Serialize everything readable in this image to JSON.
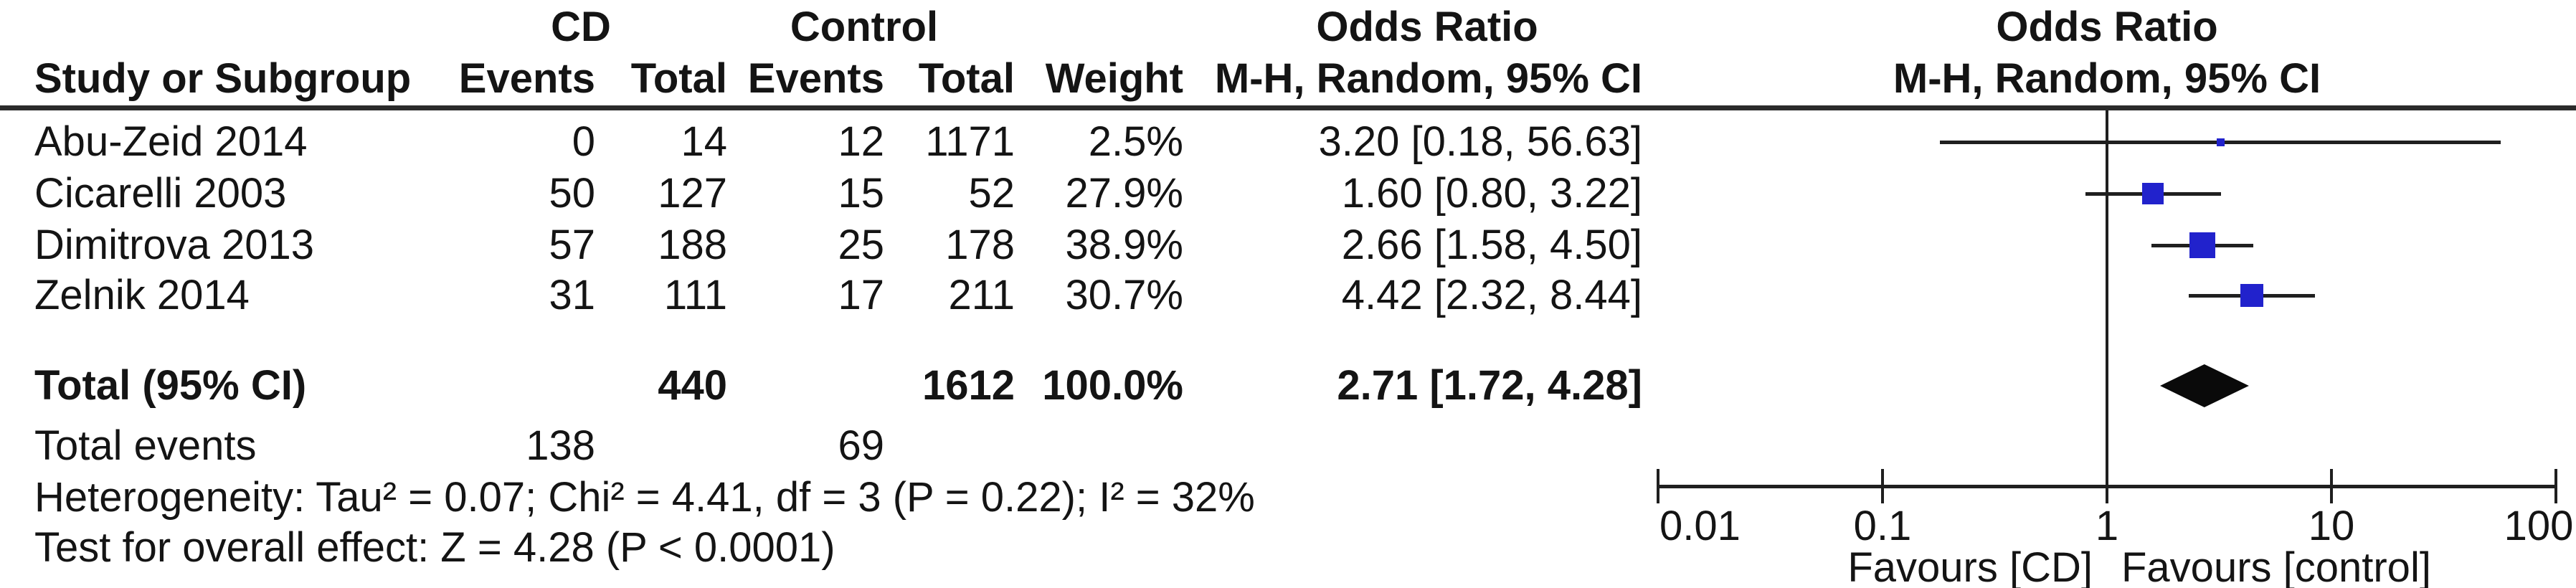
{
  "header": {
    "group_cd": "CD",
    "group_control": "Control",
    "group_or_text": "Odds Ratio",
    "group_or_plot": "Odds Ratio",
    "col_study": "Study or Subgroup",
    "col_cd_events": "Events",
    "col_cd_total": "Total",
    "col_control_events": "Events",
    "col_control_total": "Total",
    "col_weight": "Weight",
    "col_mh_ci": "M-H, Random, 95% CI",
    "col_mh_ci_plot": "M-H, Random, 95% CI"
  },
  "table": {
    "studies": [
      {
        "name": "Abu-Zeid 2014",
        "cd_events": "0",
        "cd_total": "14",
        "control_events": "12",
        "control_total": "1171",
        "weight": "2.5%",
        "ci_text": "3.20 [0.18, 56.63]"
      },
      {
        "name": "Cicarelli 2003",
        "cd_events": "50",
        "cd_total": "127",
        "control_events": "15",
        "control_total": "52",
        "weight": "27.9%",
        "ci_text": "1.60 [0.80, 3.22]"
      },
      {
        "name": "Dimitrova 2013",
        "cd_events": "57",
        "cd_total": "188",
        "control_events": "25",
        "control_total": "178",
        "weight": "38.9%",
        "ci_text": "2.66 [1.58, 4.50]"
      },
      {
        "name": "Zelnik 2014",
        "cd_events": "31",
        "cd_total": "111",
        "control_events": "17",
        "control_total": "211",
        "weight": "30.7%",
        "ci_text": "4.42 [2.32, 8.44]"
      }
    ],
    "total_row": {
      "label": "Total (95% CI)",
      "cd_total": "440",
      "control_total": "1612",
      "weight": "100.0%",
      "ci_text": "2.71 [1.72, 4.28]"
    },
    "total_events_row": {
      "label": "Total events",
      "cd": "138",
      "control": "69"
    },
    "heterogeneity": "Heterogeneity: Tau² = 0.07; Chi² = 4.41, df = 3 (P = 0.22); I² = 32%",
    "overall_effect": "Test for overall effect: Z = 4.28 (P < 0.0001)"
  },
  "axis": {
    "tick_labels": [
      "0.01",
      "0.1",
      "1",
      "10",
      "100"
    ],
    "favours_left": "Favours [CD]",
    "favours_right": "Favours [control]"
  },
  "colors": {
    "square_blue": "#2122cc",
    "diamond_black": "#0a0a0a",
    "line_dark": "#1f1f1f",
    "text": "#141414"
  },
  "chart_data": {
    "type": "scatter",
    "subtype": "forest-plot",
    "title": "Odds Ratio",
    "effect_measure": "M-H, Random, 95% CI",
    "x_scale": "log10",
    "xlim": [
      0.01,
      100
    ],
    "x_ticks": [
      0.01,
      0.1,
      1,
      10,
      100
    ],
    "x_axis_labels": {
      "left": "Favours [CD]",
      "right": "Favours [control]"
    },
    "reference_line": 1,
    "studies": [
      {
        "study": "Abu-Zeid 2014",
        "cd_events": 0,
        "cd_total": 14,
        "control_events": 12,
        "control_total": 1171,
        "weight_pct": 2.5,
        "or": 3.2,
        "ci_low": 0.18,
        "ci_high": 56.63
      },
      {
        "study": "Cicarelli 2003",
        "cd_events": 50,
        "cd_total": 127,
        "control_events": 15,
        "control_total": 52,
        "weight_pct": 27.9,
        "or": 1.6,
        "ci_low": 0.8,
        "ci_high": 3.22
      },
      {
        "study": "Dimitrova 2013",
        "cd_events": 57,
        "cd_total": 188,
        "control_events": 25,
        "control_total": 178,
        "weight_pct": 38.9,
        "or": 2.66,
        "ci_low": 1.58,
        "ci_high": 4.5
      },
      {
        "study": "Zelnik 2014",
        "cd_events": 31,
        "cd_total": 111,
        "control_events": 17,
        "control_total": 211,
        "weight_pct": 30.7,
        "or": 4.42,
        "ci_low": 2.32,
        "ci_high": 8.44
      }
    ],
    "total": {
      "label": "Total (95% CI)",
      "cd_total": 440,
      "control_total": 1612,
      "cd_events": 138,
      "control_events": 69,
      "weight_pct": 100.0,
      "or": 2.71,
      "ci_low": 1.72,
      "ci_high": 4.28
    },
    "heterogeneity": {
      "tau2": 0.07,
      "chi2": 4.41,
      "df": 3,
      "p": 0.22,
      "i2_pct": 32
    },
    "overall_effect": {
      "z": 4.28,
      "p": "< 0.0001"
    }
  }
}
